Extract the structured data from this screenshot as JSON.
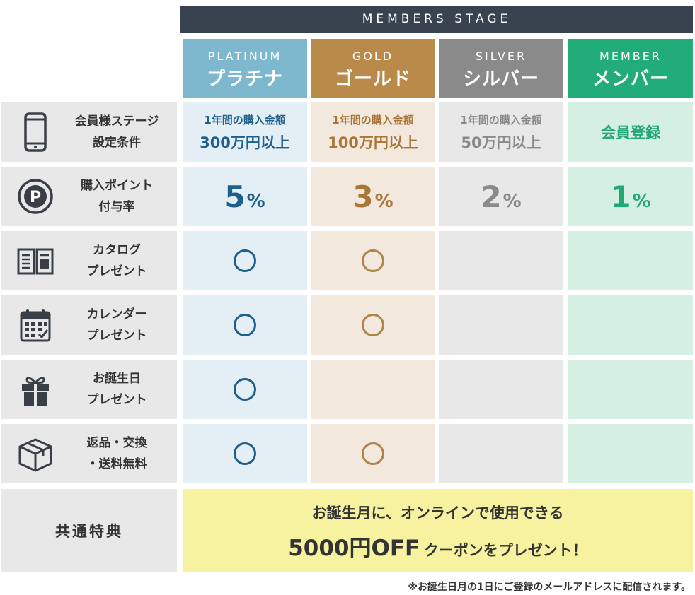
{
  "header": {
    "stage_label": "MEMBERS STAGE"
  },
  "tiers": [
    {
      "en": "PLATINUM",
      "jp": "プラチナ",
      "color": "#7eb8ce"
    },
    {
      "en": "GOLD",
      "jp": "ゴールド",
      "color": "#b98a4a"
    },
    {
      "en": "SILVER",
      "jp": "シルバー",
      "color": "#8a8a8a"
    },
    {
      "en": "MEMBER",
      "jp": "メンバー",
      "color": "#22ad78"
    }
  ],
  "rows": {
    "condition": {
      "label": [
        "会員様ステージ",
        "設定条件"
      ],
      "icon": "smartphone-icon",
      "platinum": {
        "line1": "1年間の購入金額",
        "line2": "300万円以上"
      },
      "gold": {
        "line1": "1年間の購入金額",
        "line2": "100万円以上"
      },
      "silver": {
        "line1": "1年間の購入金額",
        "line2": "50万円以上"
      },
      "member": {
        "line1": "会員登録"
      }
    },
    "points": {
      "label": [
        "購入ポイント",
        "付与率"
      ],
      "icon": "point-p-icon",
      "platinum": {
        "num": "5",
        "unit": "%"
      },
      "gold": {
        "num": "3",
        "unit": "%"
      },
      "silver": {
        "num": "2",
        "unit": "%"
      },
      "member": {
        "num": "1",
        "unit": "%"
      }
    },
    "catalog": {
      "label": [
        "カタログ",
        "プレゼント"
      ],
      "icon": "open-book-icon",
      "marks": [
        "○",
        "○",
        "",
        ""
      ]
    },
    "calendar": {
      "label": [
        "カレンダー",
        "プレゼント"
      ],
      "icon": "calendar-icon",
      "marks": [
        "○",
        "○",
        "",
        ""
      ]
    },
    "birthday": {
      "label": [
        "お誕生日",
        "プレゼント"
      ],
      "icon": "gift-icon",
      "marks": [
        "○",
        "",
        "",
        ""
      ]
    },
    "returns": {
      "label": [
        "返品・交換",
        "・送料無料"
      ],
      "icon": "box-icon",
      "marks": [
        "○",
        "○",
        "",
        ""
      ]
    }
  },
  "common": {
    "label": "共通特典",
    "line1": "お誕生月に、オンラインで使用できる",
    "line2_big": "5000円OFF",
    "line2_rest": "クーポンをプレゼント！"
  },
  "footnote": "※お誕生日月の1日にご登録のメールアドレスに配信されます。"
}
